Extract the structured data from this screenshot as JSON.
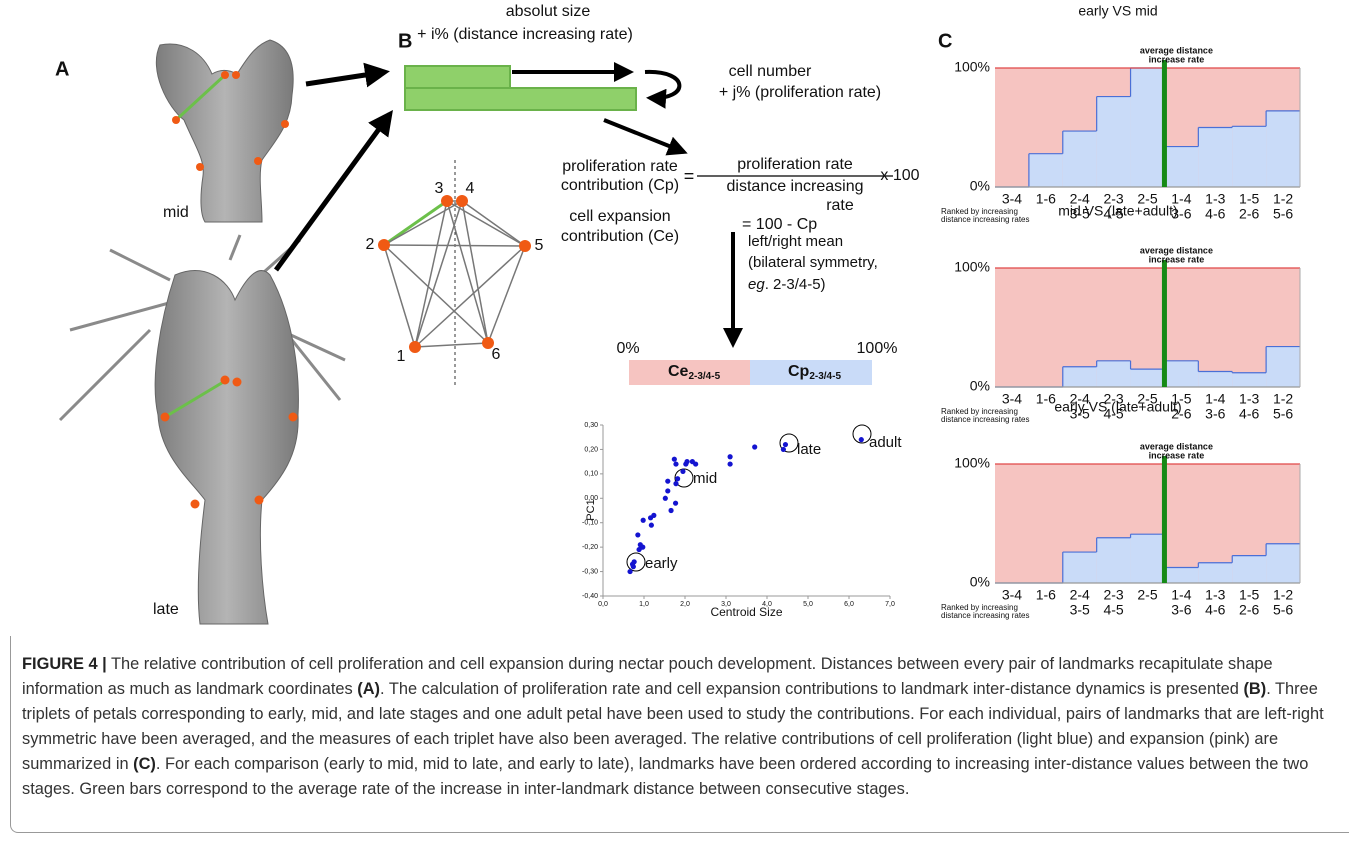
{
  "panel_a": {
    "label": "A",
    "stages": [
      "mid",
      "late"
    ]
  },
  "panel_b": {
    "label": "B",
    "size_text": [
      "absolut size",
      "+ i% (distance increasing rate)"
    ],
    "cell_text": [
      "cell number",
      "+ j% (proliferation rate)"
    ],
    "nodes": [
      "1",
      "2",
      "3",
      "4",
      "5",
      "6"
    ],
    "cp_formula": {
      "lhs": [
        "proliferation rate",
        "contribution (Cp)"
      ],
      "eq": "=",
      "numerator": "proliferation rate",
      "denominator": [
        "distance increasing",
        "rate"
      ],
      "factor": "x 100"
    },
    "ce_formula": {
      "lhs": [
        "cell expansion",
        "contribution (Ce)"
      ],
      "rhs": "= 100 - Cp"
    },
    "mean_text": [
      "left/right mean",
      "(bilateral symmetry,"
    ],
    "mean_example": {
      "italic": "eg",
      "rest": ". 2-3/4-5)"
    },
    "bar": {
      "start": "0%",
      "end": "100%",
      "ce": "Ce",
      "ce_sub": "2-3/4-5",
      "cp": "Cp",
      "cp_sub": "2-3/4-5",
      "ce_color": "#f6c4c1",
      "cp_color": "#c9dbf8"
    }
  },
  "panel_c": {
    "label": "C",
    "rank_note": [
      "Ranked by increasing",
      "distance increasing rates"
    ],
    "marker_label": [
      "average distance",
      "increase rate"
    ],
    "marker_color": "#168a16"
  },
  "chart_data": [
    {
      "type": "scatter",
      "color": "#1414d0",
      "xlabel": "Centroid Size",
      "ylabel": "PC1",
      "annotations": [
        "early",
        "mid",
        "late",
        "adult"
      ],
      "x": [
        0.66,
        0.72,
        0.76,
        0.74,
        0.93,
        0.88,
        0.97,
        0.91,
        0.85,
        0.98,
        1.18,
        1.24,
        1.16,
        1.52,
        1.58,
        1.66,
        1.77,
        1.58,
        1.78,
        1.82,
        1.74,
        1.78,
        1.95,
        2.02,
        2.05,
        2.18,
        2.26,
        3.1,
        3.1,
        3.7,
        4.4,
        4.45,
        6.3
      ],
      "y": [
        -0.3,
        -0.27,
        -0.26,
        -0.28,
        -0.2,
        -0.21,
        -0.2,
        -0.19,
        -0.15,
        -0.09,
        -0.11,
        -0.07,
        -0.08,
        0.0,
        0.03,
        -0.05,
        -0.02,
        0.07,
        0.06,
        0.08,
        0.16,
        0.14,
        0.11,
        0.14,
        0.15,
        0.15,
        0.14,
        0.14,
        0.17,
        0.21,
        0.2,
        0.22,
        0.24
      ],
      "xlim": [
        0,
        7
      ],
      "xticks": [
        {
          "value": 0,
          "label": "0,0"
        },
        {
          "value": 1,
          "label": "1,0"
        },
        {
          "value": 2,
          "label": "2,0"
        },
        {
          "value": 3,
          "label": "3,0"
        },
        {
          "value": 4,
          "label": "4,0"
        },
        {
          "value": 5,
          "label": "5,0"
        },
        {
          "value": 6,
          "label": "6,0"
        },
        {
          "value": 7,
          "label": "7,0"
        }
      ],
      "ylim": [
        -0.4,
        0.3
      ],
      "yticks": [
        {
          "value": 0.3,
          "label": "0,30"
        },
        {
          "value": 0.2,
          "label": "0,20"
        },
        {
          "value": 0.1,
          "label": "0,10"
        },
        {
          "value": 0,
          "label": "0,00"
        },
        {
          "value": -0.1,
          "label": "-0,10"
        },
        {
          "value": -0.2,
          "label": "-0,20"
        },
        {
          "value": -0.3,
          "label": "-0,30"
        },
        {
          "value": -0.4,
          "label": "-0,40"
        }
      ]
    },
    {
      "type": "step",
      "title": "early VS mid",
      "color": "#4a6fd6",
      "fill": "#c9dbf8",
      "background": "#f6c4c1",
      "categories": [
        "3-4",
        "1-6",
        [
          "2-4",
          "3-5"
        ],
        [
          "2-3",
          "4-5"
        ],
        "2-5",
        [
          "1-4",
          "3-6"
        ],
        [
          "1-3",
          "4-6"
        ],
        [
          "1-5",
          "2-6"
        ],
        [
          "1-2",
          "5-6"
        ]
      ],
      "values": [
        0,
        28,
        47,
        76,
        100,
        34,
        50,
        51,
        64
      ],
      "ylim": [
        0,
        100
      ],
      "yticks": [
        {
          "value": 0,
          "label": "0%"
        },
        {
          "value": 100,
          "label": "100%"
        }
      ]
    },
    {
      "type": "step",
      "title": "mid VS (late+adult)",
      "color": "#4a6fd6",
      "fill": "#c9dbf8",
      "background": "#f6c4c1",
      "categories": [
        "3-4",
        "1-6",
        [
          "2-4",
          "3-5"
        ],
        [
          "2-3",
          "4-5"
        ],
        "2-5",
        [
          "1-5",
          "2-6"
        ],
        [
          "1-4",
          "3-6"
        ],
        [
          "1-3",
          "4-6"
        ],
        [
          "1-2",
          "5-6"
        ]
      ],
      "values": [
        0,
        0,
        17,
        22,
        15,
        22,
        13,
        12,
        34
      ],
      "ylim": [
        0,
        100
      ],
      "yticks": [
        {
          "value": 0,
          "label": "0%"
        },
        {
          "value": 100,
          "label": "100%"
        }
      ]
    },
    {
      "type": "step",
      "title": "early VS (late+adult)",
      "color": "#4a6fd6",
      "fill": "#c9dbf8",
      "background": "#f6c4c1",
      "categories": [
        "3-4",
        "1-6",
        [
          "2-4",
          "3-5"
        ],
        [
          "2-3",
          "4-5"
        ],
        "2-5",
        [
          "1-4",
          "3-6"
        ],
        [
          "1-3",
          "4-6"
        ],
        [
          "1-5",
          "2-6"
        ],
        [
          "1-2",
          "5-6"
        ]
      ],
      "values": [
        0,
        0,
        26,
        38,
        41,
        13,
        17,
        23,
        33
      ],
      "ylim": [
        0,
        100
      ],
      "yticks": [
        {
          "value": 0,
          "label": "0%"
        },
        {
          "value": 100,
          "label": "100%"
        }
      ]
    }
  ],
  "caption": {
    "label": "FIGURE 4 |",
    "text_1": " The relative contribution of cell proliferation and cell expansion during nectar pouch development. Distances between every pair of landmarks recapitulate shape information as much as landmark coordinates ",
    "ref_a": "(A)",
    "text_2": ". The calculation of proliferation rate and cell expansion contributions to landmark inter-distance dynamics is presented ",
    "ref_b": "(B)",
    "text_3": ". Three triplets of petals corresponding to early, mid, and late stages and one adult petal have been used to study the contributions. For each individual, pairs of landmarks that are left-right symmetric have been averaged, and the measures of each triplet have also been averaged. The relative contributions of cell proliferation (light blue) and expansion (pink) are summarized in ",
    "ref_c": "(C)",
    "text_4": ". For each comparison (early to mid, mid to late, and early to late), landmarks have been ordered according to increasing inter-distance values between the two stages. Green bars correspond to the average rate of the increase in inter-landmark distance between consecutive stages."
  }
}
